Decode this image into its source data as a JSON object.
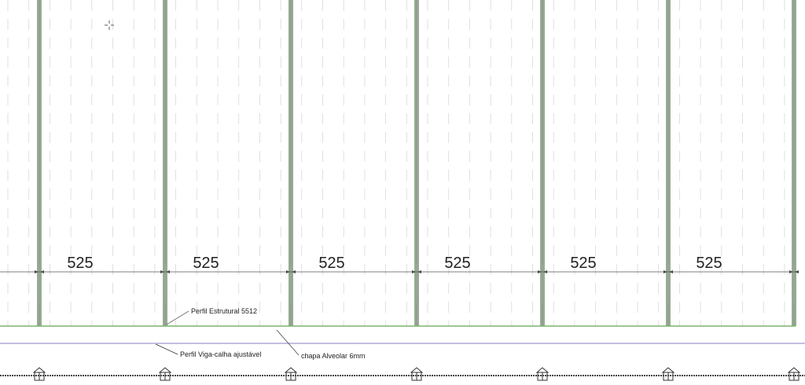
{
  "dimensions": [
    "525",
    "525",
    "525",
    "525",
    "525",
    "525"
  ],
  "annotations": {
    "profile": "Perfil Estrutural 5512",
    "gutter": "Perfil Viga-calha ajustável",
    "sheet": "chapa Alveolar 6mm"
  }
}
